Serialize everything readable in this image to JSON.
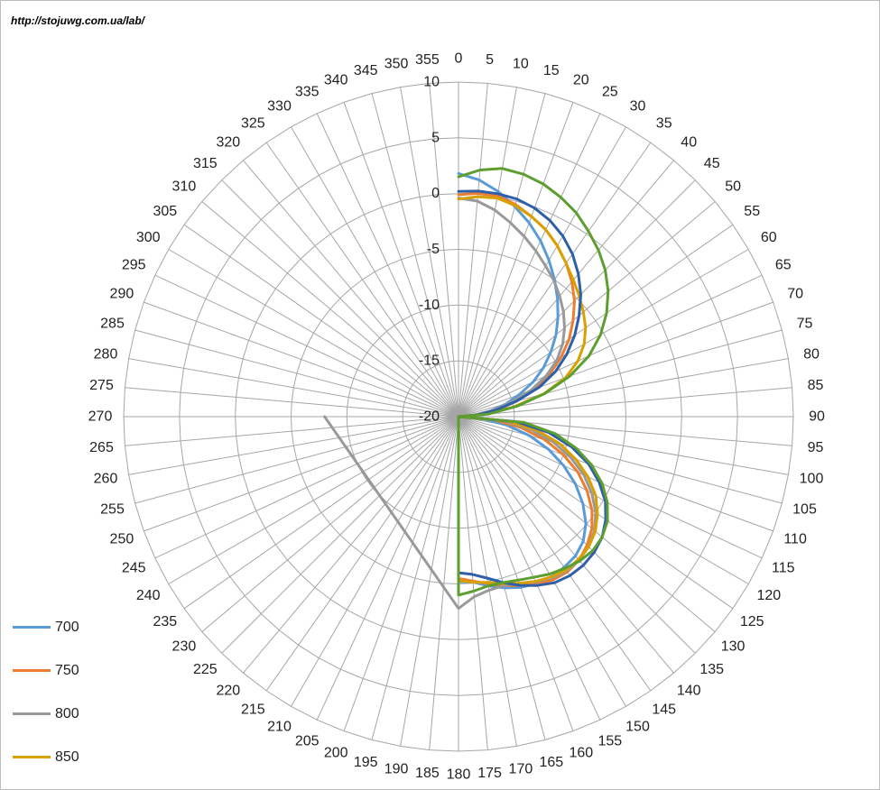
{
  "source_url": "http://stojuwg.com.ua/lab/",
  "chart_data": {
    "type": "radar",
    "radial_axis": {
      "min": -20,
      "max": 10,
      "ticks": [
        -20,
        -15,
        -10,
        -5,
        0,
        5,
        10
      ],
      "tick_labels": [
        "-20",
        "-15",
        "-10",
        "-5",
        "0",
        "5",
        "10"
      ]
    },
    "angle_categories": [
      "0",
      "5",
      "10",
      "15",
      "20",
      "25",
      "30",
      "35",
      "40",
      "45",
      "50",
      "55",
      "60",
      "65",
      "70",
      "75",
      "80",
      "85",
      "90",
      "95",
      "100",
      "105",
      "110",
      "115",
      "120",
      "125",
      "130",
      "135",
      "140",
      "145",
      "150",
      "155",
      "160",
      "165",
      "170",
      "175",
      "180",
      "185",
      "190",
      "195",
      "200",
      "205",
      "210",
      "215",
      "220",
      "225",
      "230",
      "235",
      "240",
      "245",
      "250",
      "255",
      "260",
      "265",
      "270",
      "275",
      "280",
      "285",
      "290",
      "295",
      "300",
      "305",
      "310",
      "315",
      "320",
      "325",
      "330",
      "335",
      "340",
      "345",
      "350",
      "355"
    ],
    "grid": true,
    "legend_position": "bottom-left",
    "series": [
      {
        "name": "700",
        "color": "#5b9bd5",
        "angles": [
          0,
          5,
          10,
          15,
          20,
          25,
          30,
          35,
          40,
          45,
          50,
          55,
          60,
          65,
          70,
          75,
          80,
          85,
          90,
          95,
          100,
          105,
          110,
          115,
          120,
          125,
          130,
          135,
          140,
          145,
          150,
          155,
          160,
          165,
          170,
          175,
          180,
          270
        ],
        "values": [
          1.8,
          1.3,
          0.5,
          -0.5,
          -1.5,
          -2.6,
          -3.8,
          -5,
          -6.2,
          -7.4,
          -8.6,
          -9.9,
          -11.2,
          -12.6,
          -14.2,
          -15.6,
          -17.1,
          -18.7,
          -20,
          -17.8,
          -15.6,
          -13.4,
          -11.4,
          -9.6,
          -7.9,
          -6.4,
          -5.1,
          -4.2,
          -3.7,
          -3.5,
          -3.4,
          -3.5,
          -3.7,
          -4.1,
          -4.6,
          -5.1,
          -5.2,
          -20
        ]
      },
      {
        "name": "750",
        "color": "#ed7d31",
        "angles": [
          0,
          5,
          10,
          15,
          20,
          25,
          30,
          35,
          40,
          45,
          50,
          55,
          60,
          65,
          70,
          75,
          80,
          85,
          90,
          95,
          100,
          105,
          110,
          115,
          120,
          125,
          130,
          135,
          140,
          145,
          150,
          155,
          160,
          165,
          170,
          175,
          180,
          270
        ],
        "values": [
          -0.1,
          0.1,
          0.1,
          -0.3,
          -0.9,
          -1.5,
          -2.3,
          -3.2,
          -4.2,
          -5.3,
          -6.6,
          -7.9,
          -9.4,
          -11,
          -12.8,
          -14.6,
          -16.5,
          -18.3,
          -20,
          -16.8,
          -14.3,
          -12,
          -10,
          -8.2,
          -6.7,
          -5.4,
          -4.4,
          -3.7,
          -3.2,
          -3,
          -3.1,
          -3.4,
          -3.9,
          -4.3,
          -4.8,
          -5.2,
          -5.5,
          -20
        ]
      },
      {
        "name": "800",
        "color": "#999999",
        "angles": [
          0,
          5,
          10,
          15,
          20,
          25,
          30,
          35,
          40,
          45,
          50,
          55,
          60,
          65,
          70,
          75,
          80,
          85,
          90,
          95,
          100,
          105,
          110,
          115,
          120,
          125,
          130,
          135,
          140,
          145,
          150,
          155,
          160,
          165,
          170,
          175,
          180,
          270
        ],
        "values": [
          -0.4,
          -0.6,
          -1.2,
          -2,
          -2.8,
          -3.6,
          -4.4,
          -5.1,
          -5.9,
          -6.7,
          -7.6,
          -8.6,
          -9.8,
          -11.3,
          -13.1,
          -15.1,
          -17,
          -18.7,
          -20,
          -16,
          -13.4,
          -11.2,
          -9.3,
          -7.6,
          -6.2,
          -5,
          -4.1,
          -3.5,
          -3.2,
          -3.1,
          -3.3,
          -3.7,
          -4.1,
          -4.3,
          -4.2,
          -3.8,
          -2.8,
          -8
        ]
      },
      {
        "name": "850",
        "color": "#d9a000",
        "angles": [
          0,
          5,
          10,
          15,
          20,
          25,
          30,
          35,
          40,
          45,
          50,
          55,
          60,
          65,
          70,
          75,
          80,
          85,
          90,
          95,
          100,
          105,
          110,
          115,
          120,
          125,
          130,
          135,
          140,
          145,
          150,
          155,
          160,
          165,
          170,
          175,
          180,
          270
        ],
        "values": [
          -0.5,
          -0.2,
          -0.1,
          -0.4,
          -0.9,
          -1.5,
          -2.3,
          -3.2,
          -4,
          -4.7,
          -5.4,
          -6.1,
          -7,
          -8.2,
          -9.8,
          -12.1,
          -15,
          -17.8,
          -20,
          -15.6,
          -12.8,
          -10.6,
          -8.8,
          -7.2,
          -5.8,
          -4.8,
          -4,
          -3.5,
          -3.3,
          -3.2,
          -3.4,
          -3.7,
          -4.1,
          -4.5,
          -4.9,
          -5.1,
          -5.3,
          -20
        ]
      },
      {
        "name": "",
        "color": "#2e5fa8",
        "angles": [
          0,
          5,
          10,
          15,
          20,
          25,
          30,
          35,
          40,
          45,
          50,
          55,
          60,
          65,
          70,
          75,
          80,
          85,
          90,
          95,
          100,
          105,
          110,
          115,
          120,
          125,
          130,
          135,
          140,
          145,
          150,
          155,
          160,
          165,
          170,
          175,
          180,
          270
        ],
        "values": [
          0.2,
          0.3,
          0.3,
          0.2,
          -0.1,
          -0.6,
          -1.3,
          -2.2,
          -3.3,
          -4.5,
          -5.9,
          -7.3,
          -8.8,
          -10.4,
          -12.3,
          -14.6,
          -16.6,
          -18.4,
          -20,
          -14.8,
          -11.8,
          -9.5,
          -7.6,
          -6.1,
          -4.8,
          -3.9,
          -3.2,
          -2.8,
          -2.6,
          -2.6,
          -2.8,
          -3.3,
          -3.9,
          -4.6,
          -5.3,
          -5.8,
          -6,
          -20
        ]
      },
      {
        "name": "",
        "color": "#5e9e2f",
        "angles": [
          0,
          5,
          10,
          15,
          20,
          25,
          30,
          35,
          40,
          45,
          50,
          55,
          60,
          65,
          70,
          75,
          80,
          85,
          90,
          95,
          100,
          105,
          110,
          115,
          120,
          125,
          130,
          135,
          140,
          145,
          150,
          155,
          160,
          165,
          170,
          175,
          180,
          270
        ],
        "values": [
          1.5,
          2.2,
          2.6,
          2.5,
          2.2,
          1.7,
          1.1,
          0.3,
          -0.5,
          -1.4,
          -2.5,
          -3.8,
          -5.3,
          -7.1,
          -9.4,
          -12,
          -14.7,
          -17.3,
          -20,
          -14.1,
          -11.2,
          -9.1,
          -7.3,
          -5.8,
          -4.6,
          -3.7,
          -3.2,
          -3,
          -3.1,
          -3.4,
          -3.7,
          -4.1,
          -4.4,
          -4.6,
          -4.6,
          -4.3,
          -4,
          -20
        ]
      }
    ]
  }
}
